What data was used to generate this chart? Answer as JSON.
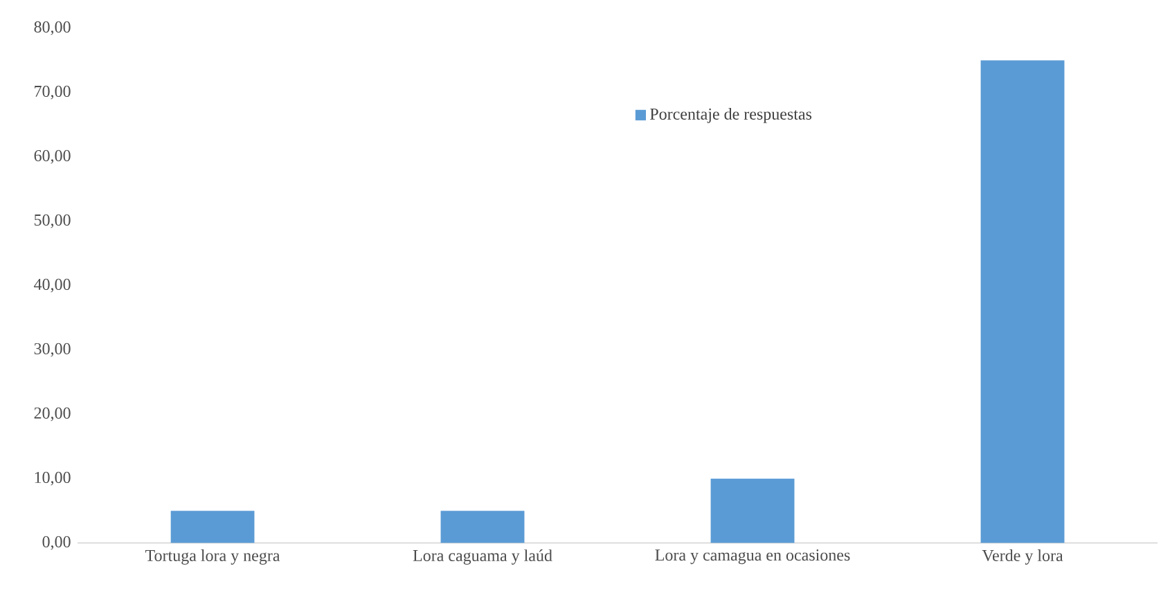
{
  "chart_data": {
    "type": "bar",
    "categories": [
      "Tortuga lora y negra",
      "Lora caguama y laúd",
      "Lora y camagua en ocasiones",
      "Verde y lora"
    ],
    "series": [
      {
        "name": "Porcentaje de respuestas",
        "color": "#5b9bd5",
        "values": [
          5,
          5,
          10,
          75
        ]
      }
    ],
    "ylim": [
      0,
      80
    ],
    "yticks": [
      {
        "value": 0,
        "label": "0,00"
      },
      {
        "value": 10,
        "label": "10,00"
      },
      {
        "value": 20,
        "label": "20,00"
      },
      {
        "value": 30,
        "label": "30,00"
      },
      {
        "value": 40,
        "label": "40,00"
      },
      {
        "value": 50,
        "label": "50,00"
      },
      {
        "value": 60,
        "label": "60,00"
      },
      {
        "value": 70,
        "label": "70,00"
      },
      {
        "value": 80,
        "label": "80,00"
      }
    ],
    "grid": false,
    "legend": "top"
  }
}
